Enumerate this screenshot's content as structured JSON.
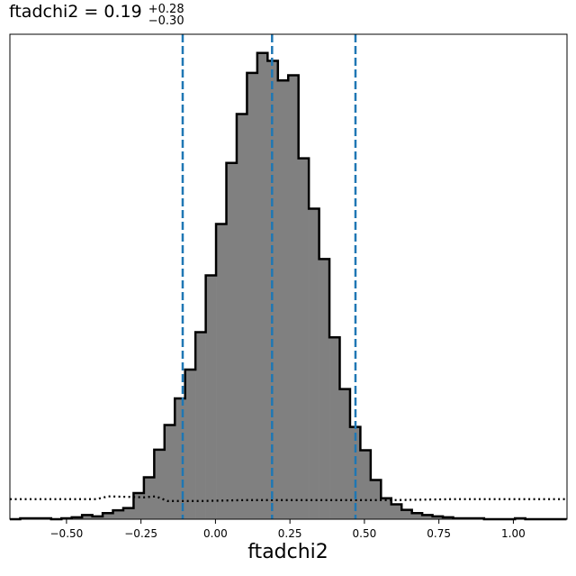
{
  "chart_data": {
    "type": "histogram",
    "title": {
      "param": "ftadchi2",
      "median": "0.19",
      "upper": "+0.28",
      "lower": "−0.30"
    },
    "xlabel": "ftadchi2",
    "ylabel": "",
    "xlim": [
      -0.69,
      1.18
    ],
    "ylim": [
      0,
      1.04
    ],
    "xticks": [
      -0.5,
      -0.25,
      0.0,
      0.25,
      0.5,
      0.75,
      1.0
    ],
    "xtick_labels": [
      "−0.50",
      "−0.25",
      "0.00",
      "0.25",
      "0.50",
      "0.75",
      "1.00"
    ],
    "yticks_visible": false,
    "grid": false,
    "bin_start": -0.69,
    "bin_width": 0.0346,
    "counts": [
      0.0,
      0.002,
      0.002,
      0.002,
      0.0,
      0.002,
      0.004,
      0.009,
      0.006,
      0.013,
      0.019,
      0.024,
      0.056,
      0.09,
      0.149,
      0.202,
      0.259,
      0.321,
      0.401,
      0.523,
      0.633,
      0.764,
      0.869,
      0.957,
      1.0,
      0.983,
      0.941,
      0.952,
      0.774,
      0.666,
      0.558,
      0.39,
      0.279,
      0.198,
      0.148,
      0.084,
      0.045,
      0.032,
      0.02,
      0.013,
      0.009,
      0.006,
      0.004,
      0.002,
      0.002,
      0.002,
      0.0,
      0.0,
      0.0,
      0.002,
      0.0,
      0.0,
      0.0,
      0.0
    ],
    "fill_color": "#808080",
    "edge_color": "#000000",
    "quantile_lines": {
      "values": [
        -0.11,
        0.19,
        0.47
      ],
      "color": "#1f77b4",
      "style": "dashed"
    },
    "prior_curve": {
      "style": "dotted",
      "color": "#000000",
      "x": [
        -0.69,
        -0.4,
        -0.36,
        -0.24,
        -0.2,
        -0.16,
        -0.05,
        0.1,
        0.2,
        0.4,
        0.6,
        0.8,
        1.0,
        1.18
      ],
      "y": [
        0.043,
        0.043,
        0.049,
        0.047,
        0.049,
        0.039,
        0.039,
        0.041,
        0.041,
        0.041,
        0.041,
        0.043,
        0.043,
        0.043
      ]
    }
  }
}
